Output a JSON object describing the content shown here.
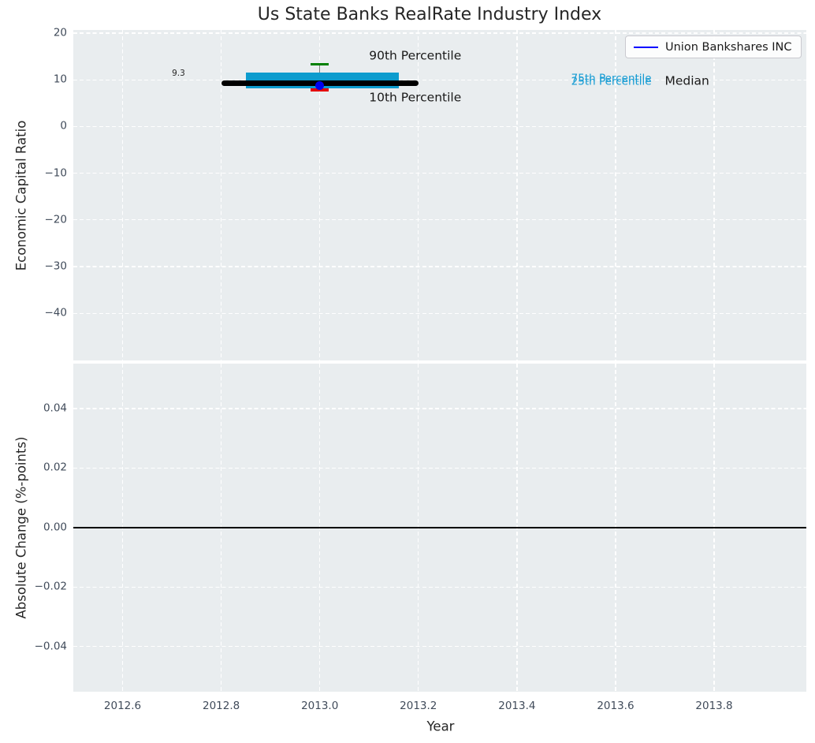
{
  "page": {
    "title": "Us State Banks RealRate Industry Index"
  },
  "colors": {
    "plot_background": "#e9edef",
    "grid": "#ffffff",
    "tick_label": "#404b5a",
    "text": "#262626",
    "iqr_box_fill": "#0d9cce",
    "percentile_label_blue": "#149bd3",
    "p90_cap_green": "#008000",
    "p10_cap_red": "#e50000",
    "company_dot_blue": "#0000ee",
    "legend_line_blue": "#0000ff",
    "median_line": "#000000",
    "zero_line": "#000000"
  },
  "legend": {
    "label": "Union Bankshares INC"
  },
  "chart_data": [
    {
      "id": "economic_capital_ratio",
      "type": "box",
      "title": "Us State Banks RealRate Industry Index",
      "ylabel": "Economic Capital Ratio",
      "xlim": [
        2012.5,
        2013.987
      ],
      "ylim": [
        -50.1,
        20.68
      ],
      "grid": true,
      "legend_position": "upper right",
      "xticks": {
        "values": [
          2012.6,
          2012.8,
          2013.0,
          2013.2,
          2013.4,
          2013.6,
          2013.8
        ],
        "labels": null
      },
      "yticks": {
        "values": [
          20,
          10,
          0,
          -10,
          -20,
          -30,
          -40
        ],
        "labels": [
          "20",
          "10",
          "0",
          "−10",
          "−20",
          "−30",
          "−40"
        ]
      },
      "industry_box": {
        "year": 2013.0,
        "median": 9.3,
        "median_label": "9.3",
        "p75": 11.6,
        "p25": 8.2,
        "p90": 13.3,
        "p10": 7.8,
        "median_span": [
          2012.8,
          2013.2
        ],
        "box_span": [
          2012.85,
          2013.16
        ],
        "cap_span": [
          2012.982,
          2013.018
        ]
      },
      "series": [
        {
          "name": "Union Bankshares INC",
          "type": "scatter",
          "x": [
            2013.0
          ],
          "y": [
            8.7
          ]
        }
      ],
      "annotations": [
        {
          "text": "9.3",
          "x": 2012.7,
          "y": 11.4,
          "size": 10.5,
          "color": "#262626"
        },
        {
          "text": "90th Percentile",
          "x": 2013.1,
          "y": 15.1,
          "size": 15.5,
          "color": "#1a1a1a"
        },
        {
          "text": "10th Percentile",
          "x": 2013.1,
          "y": 6.2,
          "size": 15.5,
          "color": "#1a1a1a"
        },
        {
          "text": "75th Percentile",
          "x": 2013.51,
          "y": 10.2,
          "size": 13.5,
          "color": "#149bd3"
        },
        {
          "text": "25th Percentile",
          "x": 2013.51,
          "y": 9.6,
          "size": 13.5,
          "color": "#149bd3"
        },
        {
          "text": "Median",
          "x": 2013.7,
          "y": 9.7,
          "size": 15.5,
          "color": "#1a1a1a"
        }
      ]
    },
    {
      "id": "absolute_change",
      "type": "line",
      "ylabel": "Absolute Change (%-points)",
      "xlabel": "Year",
      "xlim": [
        2012.5,
        2013.987
      ],
      "ylim": [
        -0.0552,
        0.0551
      ],
      "grid": true,
      "xticks": {
        "values": [
          2012.6,
          2012.8,
          2013.0,
          2013.2,
          2013.4,
          2013.6,
          2013.8
        ],
        "labels": [
          "2012.6",
          "2012.8",
          "2013.0",
          "2013.2",
          "2013.4",
          "2013.6",
          "2013.8"
        ]
      },
      "yticks": {
        "values": [
          0.04,
          0.02,
          0.0,
          -0.02,
          -0.04
        ],
        "labels": [
          "0.04",
          "0.02",
          "0.00",
          "−0.02",
          "−0.04"
        ]
      },
      "series": [
        {
          "name": "zero_baseline",
          "type": "hline",
          "y": 0.0
        }
      ]
    }
  ]
}
